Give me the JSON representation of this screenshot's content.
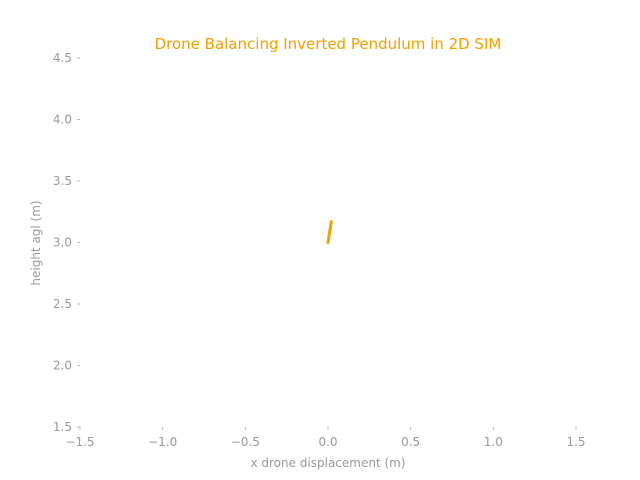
{
  "chart_data": {
    "type": "line",
    "title": "Drone Balancing Inverted Pendulum in 2D SIM",
    "xlabel": "x drone displacement (m)",
    "ylabel": "height agl (m)",
    "xlim": [
      -1.5,
      1.5
    ],
    "ylim": [
      1.5,
      4.5
    ],
    "xticks": [
      "−1.5",
      "−1.0",
      "−0.5",
      "0.0",
      "0.5",
      "1.0",
      "1.5"
    ],
    "yticks": [
      "1.5",
      "2.0",
      "2.5",
      "3.0",
      "3.5",
      "4.0",
      "4.5"
    ],
    "grid": false,
    "frame": false,
    "series": [
      {
        "color": "#f0a000",
        "x": [
          0.0,
          0.02
        ],
        "y": [
          3.0,
          3.17
        ]
      }
    ]
  }
}
